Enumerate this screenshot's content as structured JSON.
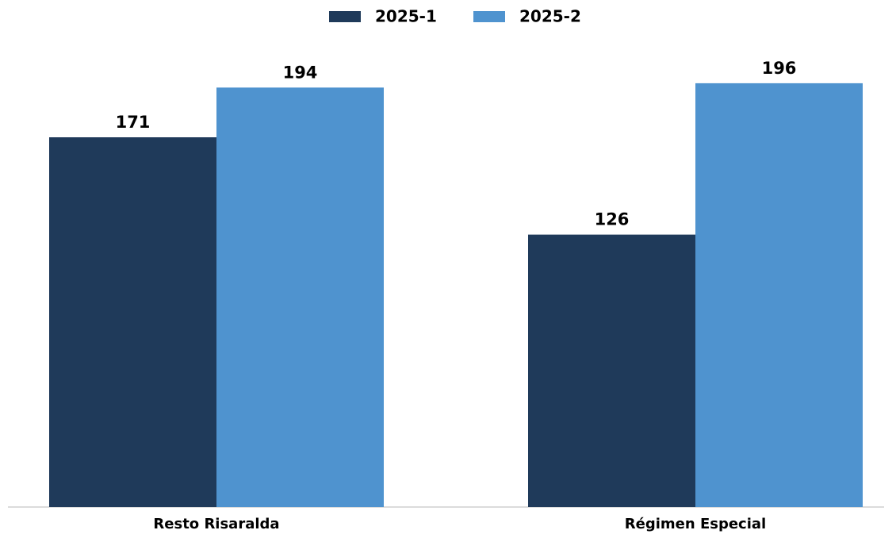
{
  "chart_data": {
    "type": "bar",
    "categories": [
      "Resto Risaralda",
      "Régimen Especial"
    ],
    "series": [
      {
        "name": "2025-1",
        "color": "#1f3a5a",
        "values": [
          171,
          126
        ]
      },
      {
        "name": "2025-2",
        "color": "#4f93cf",
        "values": [
          194,
          196
        ]
      }
    ],
    "ylim": [
      0,
      220
    ],
    "legend": "top"
  }
}
